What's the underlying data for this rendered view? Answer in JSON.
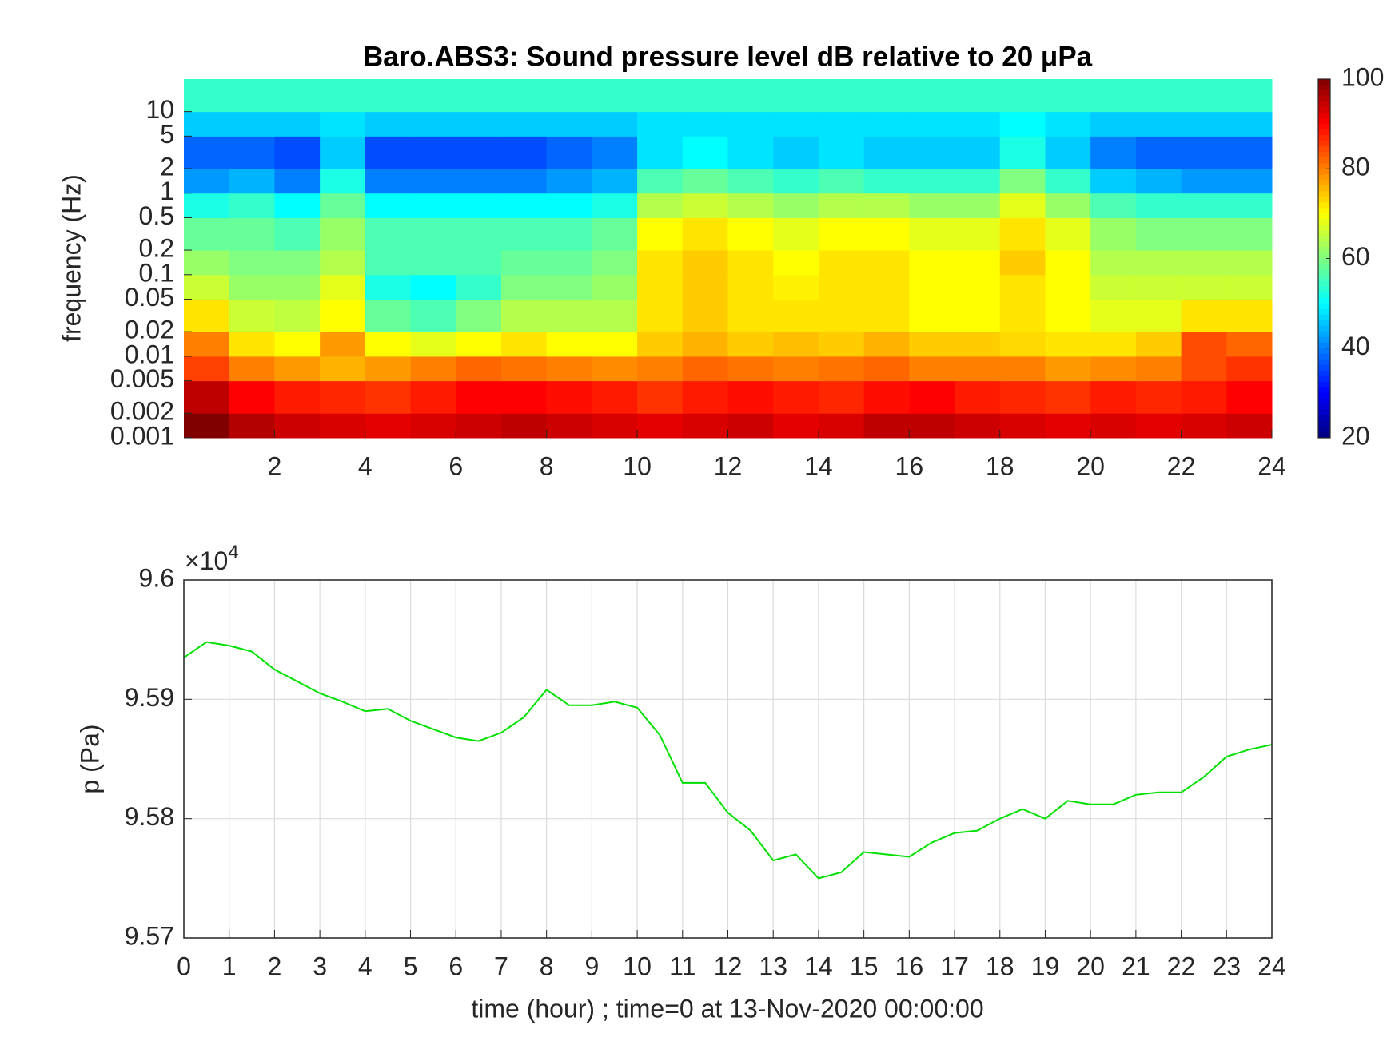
{
  "chart_data": [
    {
      "type": "heatmap",
      "title": "Baro.ABS3: Sound pressure level dB relative to 20 μPa",
      "ylabel": "frequency (Hz)",
      "x_bins": [
        0,
        1,
        2,
        3,
        4,
        5,
        6,
        7,
        8,
        9,
        10,
        11,
        12,
        13,
        14,
        15,
        16,
        17,
        18,
        19,
        20,
        21,
        22,
        23,
        24
      ],
      "y_bins": [
        0.001,
        0.002,
        0.005,
        0.01,
        0.02,
        0.05,
        0.1,
        0.2,
        0.5,
        1,
        2,
        5,
        10,
        25
      ],
      "values": [
        [
          100,
          96,
          94,
          93,
          92,
          93,
          94,
          95,
          94,
          93,
          92,
          93,
          94,
          92,
          93,
          95,
          95,
          94,
          93,
          92,
          93,
          92,
          93,
          94
        ],
        [
          95,
          90,
          88,
          87,
          86,
          88,
          90,
          90,
          89,
          88,
          86,
          88,
          89,
          88,
          87,
          89,
          90,
          88,
          87,
          86,
          88,
          87,
          88,
          90
        ],
        [
          85,
          80,
          78,
          76,
          78,
          80,
          82,
          81,
          80,
          79,
          80,
          82,
          81,
          80,
          81,
          82,
          80,
          80,
          80,
          78,
          79,
          80,
          84,
          86
        ],
        [
          80,
          72,
          70,
          78,
          70,
          68,
          70,
          72,
          70,
          70,
          74,
          76,
          74,
          75,
          74,
          76,
          74,
          74,
          73,
          72,
          72,
          74,
          84,
          82
        ],
        [
          72,
          66,
          65,
          70,
          58,
          56,
          60,
          64,
          64,
          64,
          72,
          74,
          72,
          72,
          72,
          72,
          70,
          70,
          72,
          70,
          68,
          68,
          72,
          72
        ],
        [
          66,
          62,
          62,
          68,
          52,
          50,
          54,
          60,
          60,
          62,
          72,
          74,
          72,
          71,
          72,
          72,
          70,
          70,
          72,
          70,
          66,
          66,
          66,
          66
        ],
        [
          62,
          60,
          60,
          64,
          56,
          56,
          56,
          58,
          58,
          60,
          72,
          74,
          72,
          70,
          72,
          72,
          70,
          70,
          74,
          70,
          64,
          64,
          64,
          64
        ],
        [
          58,
          58,
          56,
          62,
          56,
          56,
          56,
          56,
          56,
          58,
          70,
          72,
          70,
          68,
          70,
          70,
          68,
          68,
          72,
          68,
          62,
          60,
          60,
          60
        ],
        [
          52,
          54,
          50,
          58,
          50,
          50,
          50,
          50,
          50,
          52,
          64,
          66,
          64,
          62,
          64,
          64,
          62,
          62,
          68,
          62,
          56,
          54,
          54,
          54
        ],
        [
          42,
          44,
          40,
          52,
          40,
          40,
          40,
          40,
          42,
          44,
          56,
          58,
          56,
          54,
          56,
          54,
          54,
          54,
          60,
          54,
          46,
          44,
          42,
          42
        ],
        [
          38,
          38,
          36,
          46,
          36,
          36,
          36,
          36,
          38,
          40,
          48,
          50,
          48,
          46,
          48,
          46,
          46,
          46,
          52,
          46,
          40,
          38,
          38,
          38
        ],
        [
          46,
          46,
          46,
          48,
          46,
          46,
          46,
          46,
          46,
          46,
          48,
          48,
          48,
          48,
          48,
          48,
          48,
          48,
          50,
          48,
          46,
          46,
          46,
          46
        ],
        [
          54,
          54,
          54,
          54,
          54,
          54,
          54,
          54,
          54,
          54,
          54,
          54,
          54,
          54,
          54,
          54,
          54,
          54,
          54,
          54,
          54,
          54,
          54,
          54
        ]
      ],
      "xlim": [
        0,
        24
      ],
      "xticks": [
        2,
        4,
        6,
        8,
        10,
        12,
        14,
        16,
        18,
        20,
        22,
        24
      ],
      "ylim": [
        0.001,
        25
      ],
      "y_scale": "log",
      "yticks": [
        0.001,
        0.002,
        0.005,
        0.01,
        0.02,
        0.05,
        0.1,
        0.2,
        0.5,
        1,
        2,
        5,
        10
      ],
      "colormap": "jet",
      "clim": [
        20,
        100
      ],
      "colorbar_ticks": [
        20,
        40,
        60,
        80,
        100
      ]
    },
    {
      "type": "line",
      "xlabel": "time (hour) ; time=0 at 13-Nov-2020 00:00:00",
      "ylabel": "p (Pa)",
      "y_multiplier": {
        "base": "×10",
        "exponent": "4"
      },
      "x": [
        0,
        0.5,
        1,
        1.5,
        2,
        2.5,
        3,
        3.5,
        4,
        4.5,
        5,
        5.5,
        6,
        6.5,
        7,
        7.5,
        8,
        8.5,
        9,
        9.5,
        10,
        10.5,
        11,
        11.5,
        12,
        12.5,
        13,
        13.5,
        14,
        14.5,
        15,
        15.5,
        16,
        16.5,
        17,
        17.5,
        18,
        18.5,
        19,
        19.5,
        20,
        20.5,
        21,
        21.5,
        22,
        22.5,
        23,
        23.5,
        24
      ],
      "series": [
        {
          "color": "#00e000",
          "values": [
            95935,
            95948,
            95945,
            95940,
            95925,
            95915,
            95905,
            95898,
            95890,
            95892,
            95882,
            95875,
            95868,
            95865,
            95872,
            95885,
            95908,
            95895,
            95895,
            95898,
            95893,
            95870,
            95830,
            95830,
            95805,
            95790,
            95765,
            95770,
            95750,
            95755,
            95772,
            95770,
            95768,
            95780,
            95788,
            95790,
            95800,
            95808,
            95800,
            95815,
            95812,
            95812,
            95820,
            95822,
            95822,
            95835,
            95852,
            95858,
            95862
          ]
        }
      ],
      "xlim": [
        0,
        24
      ],
      "xticks": [
        0,
        1,
        2,
        3,
        4,
        5,
        6,
        7,
        8,
        9,
        10,
        11,
        12,
        13,
        14,
        15,
        16,
        17,
        18,
        19,
        20,
        21,
        22,
        23,
        24
      ],
      "ylim": [
        95700,
        96000
      ],
      "yticks": [
        {
          "value": 95700,
          "label": "9.57"
        },
        {
          "value": 95800,
          "label": "9.58"
        },
        {
          "value": 95900,
          "label": "9.59"
        },
        {
          "value": 96000,
          "label": "9.6"
        }
      ],
      "grid": true
    }
  ]
}
